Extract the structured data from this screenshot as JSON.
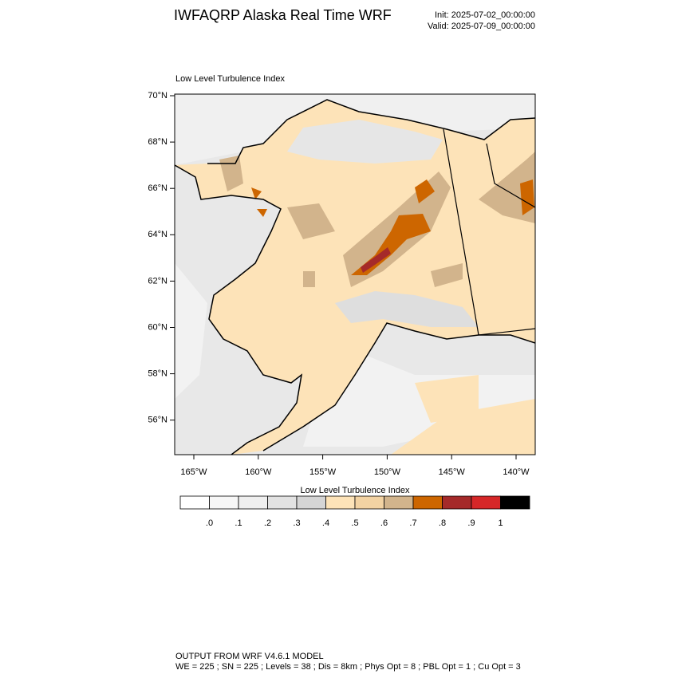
{
  "header": {
    "title": "IWFAQRP Alaska Real Time WRF",
    "init": "Init: 2025-07-02_00:00:00",
    "valid": "Valid: 2025-07-09_00:00:00"
  },
  "map": {
    "title": "Low Level Turbulence Index",
    "lat_labels": [
      "70°N",
      "68°N",
      "66°N",
      "64°N",
      "62°N",
      "60°N",
      "58°N",
      "56°N"
    ],
    "lon_labels": [
      "165°W",
      "160°W",
      "155°W",
      "150°W",
      "145°W",
      "140°W"
    ]
  },
  "colorbar": {
    "title": "Low Level Turbulence Index",
    "colors": [
      "#ffffff",
      "#f7f7f7",
      "#efefef",
      "#e2e2e2",
      "#d5d5d5",
      "#fde3b8",
      "#f3d3a3",
      "#d2b48c",
      "#cd6600",
      "#a52a2a",
      "#d62728",
      "#000000"
    ],
    "ticks": [
      {
        "value": 0,
        "label": ".0"
      },
      {
        "value": 0.1,
        "label": ".1"
      },
      {
        "value": 0.2,
        "label": ".2"
      },
      {
        "value": 0.3,
        "label": ".3"
      },
      {
        "value": 0.4,
        "label": ".4"
      },
      {
        "value": 0.5,
        "label": ".5"
      },
      {
        "value": 0.6,
        "label": ".6"
      },
      {
        "value": 0.7,
        "label": ".7"
      },
      {
        "value": 0.8,
        "label": ".8"
      },
      {
        "value": 0.9,
        "label": ".9"
      },
      1
    ]
  },
  "footer": {
    "line1": "OUTPUT FROM WRF V4.6.1 MODEL",
    "line2": "WE = 225 ; SN = 225 ; Levels = 38 ; Dis = 8km ; Phys Opt = 8 ; PBL Opt = 1 ; Cu Opt = 3"
  }
}
